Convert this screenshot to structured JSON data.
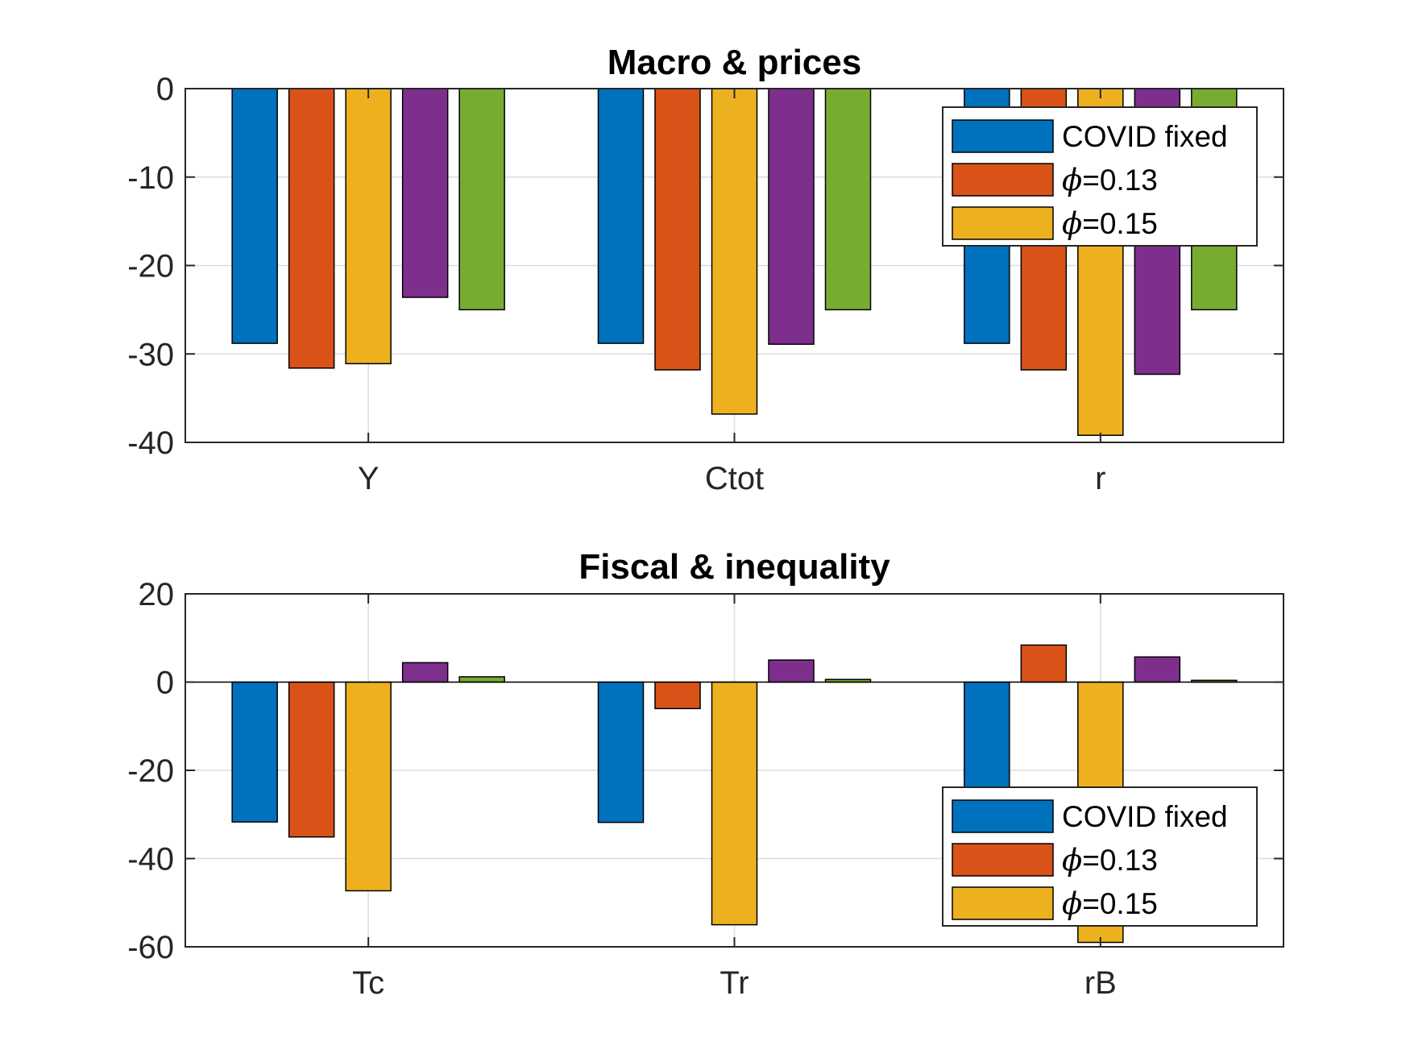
{
  "colors": {
    "series": [
      "#0072BD",
      "#D95319",
      "#EDB120",
      "#7E2F8E",
      "#77AC30"
    ],
    "grid": "#dcdcdc",
    "axis": "#262626"
  },
  "chart_data": [
    {
      "type": "bar",
      "title": "Macro & prices",
      "categories": [
        "Y",
        "Ctot",
        "r"
      ],
      "ylim": [
        -40,
        0
      ],
      "yticks": [
        "0",
        "-10",
        "-20",
        "-30",
        "-40"
      ],
      "ytick_values": [
        0,
        -10,
        -20,
        -30,
        -40
      ],
      "grid": true,
      "legend_position": "top-right",
      "legend": [
        {
          "label": "COVID fixed"
        },
        {
          "symbol": "ϕ",
          "label": "=0.13"
        },
        {
          "symbol": "ϕ",
          "label": "=0.15"
        }
      ],
      "series": [
        {
          "name": "COVID fixed",
          "values": [
            -28.8,
            -28.8,
            -28.8
          ]
        },
        {
          "name": "ϕ=0.13",
          "values": [
            -31.6,
            -31.8,
            -31.8
          ]
        },
        {
          "name": "ϕ=0.15",
          "values": [
            -31.1,
            -36.8,
            -39.2
          ]
        },
        {
          "values": [
            -23.6,
            -28.9,
            -32.3
          ]
        },
        {
          "values": [
            -25.0,
            -25.0,
            -25.0
          ]
        }
      ]
    },
    {
      "type": "bar",
      "title": "Fiscal & inequality",
      "categories": [
        "Tc",
        "Tr",
        "rB"
      ],
      "ylim": [
        -60,
        20
      ],
      "yticks": [
        "20",
        "0",
        "-20",
        "-40",
        "-60"
      ],
      "ytick_values": [
        20,
        0,
        -20,
        -40,
        -60
      ],
      "grid": true,
      "legend_position": "bottom-right",
      "legend": [
        {
          "label": "COVID fixed"
        },
        {
          "symbol": "ϕ",
          "label": "=0.13"
        },
        {
          "symbol": "ϕ",
          "label": "=0.15"
        }
      ],
      "series": [
        {
          "name": "COVID fixed",
          "values": [
            -31.7,
            -31.8,
            -33.0
          ]
        },
        {
          "name": "ϕ=0.13",
          "values": [
            -35.1,
            -6.0,
            8.4
          ]
        },
        {
          "name": "ϕ=0.15",
          "values": [
            -47.3,
            -55.0,
            -59.0
          ]
        },
        {
          "values": [
            4.4,
            5.0,
            5.7
          ]
        },
        {
          "values": [
            1.2,
            0.6,
            0.4
          ]
        }
      ]
    }
  ]
}
